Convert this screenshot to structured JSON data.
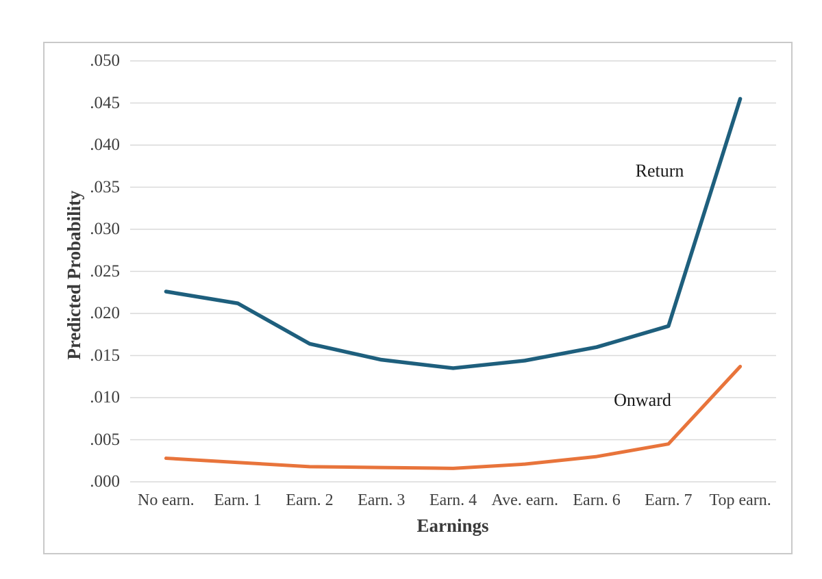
{
  "figure": {
    "y_axis_title": "Predicted Probability",
    "x_axis_title": "Earnings",
    "series_labels": {
      "return": "Return",
      "onward": "Onward"
    }
  },
  "chart_data": {
    "type": "line",
    "title": "",
    "xlabel": "Earnings",
    "ylabel": "Predicted Probability",
    "categories": [
      "No earn.",
      "Earn. 1",
      "Earn. 2",
      "Earn. 3",
      "Earn. 4",
      "Ave. earn.",
      "Earn. 6",
      "Earn. 7",
      "Top earn."
    ],
    "series": [
      {
        "name": "Return",
        "color": "#1e5f7d",
        "stroke_width": 5.5,
        "values": [
          0.0226,
          0.0212,
          0.0164,
          0.0145,
          0.0135,
          0.0144,
          0.016,
          0.0185,
          0.0455
        ]
      },
      {
        "name": "Onward",
        "color": "#e8743b",
        "stroke_width": 5,
        "values": [
          0.0028,
          0.0023,
          0.0018,
          0.0017,
          0.0016,
          0.0021,
          0.003,
          0.0045,
          0.0137
        ]
      }
    ],
    "ylim": [
      0.0,
      0.05
    ],
    "y_ticks": [
      {
        "value": 0.05,
        "label": ".050"
      },
      {
        "value": 0.045,
        "label": ".045"
      },
      {
        "value": 0.04,
        "label": ".040"
      },
      {
        "value": 0.035,
        "label": ".035"
      },
      {
        "value": 0.03,
        "label": ".030"
      },
      {
        "value": 0.025,
        "label": ".025"
      },
      {
        "value": 0.02,
        "label": ".020"
      },
      {
        "value": 0.015,
        "label": ".015"
      },
      {
        "value": 0.01,
        "label": ".010"
      },
      {
        "value": 0.005,
        "label": ".005"
      },
      {
        "value": 0.0,
        "label": ".000"
      }
    ],
    "grid": "horizontal",
    "legend_position": "inline-labels-on-plot",
    "annotations": [
      {
        "text": "Return",
        "attached_series": "Return"
      },
      {
        "text": "Onward",
        "attached_series": "Onward"
      }
    ]
  },
  "colors": {
    "gridline": "#d9d9d9",
    "figure_border": "#c9c9c9",
    "tick_text": "#3f3f3f",
    "axis_title_text": "#3a3a3a",
    "annotation_text": "#1a1a1a",
    "background": "#ffffff"
  }
}
